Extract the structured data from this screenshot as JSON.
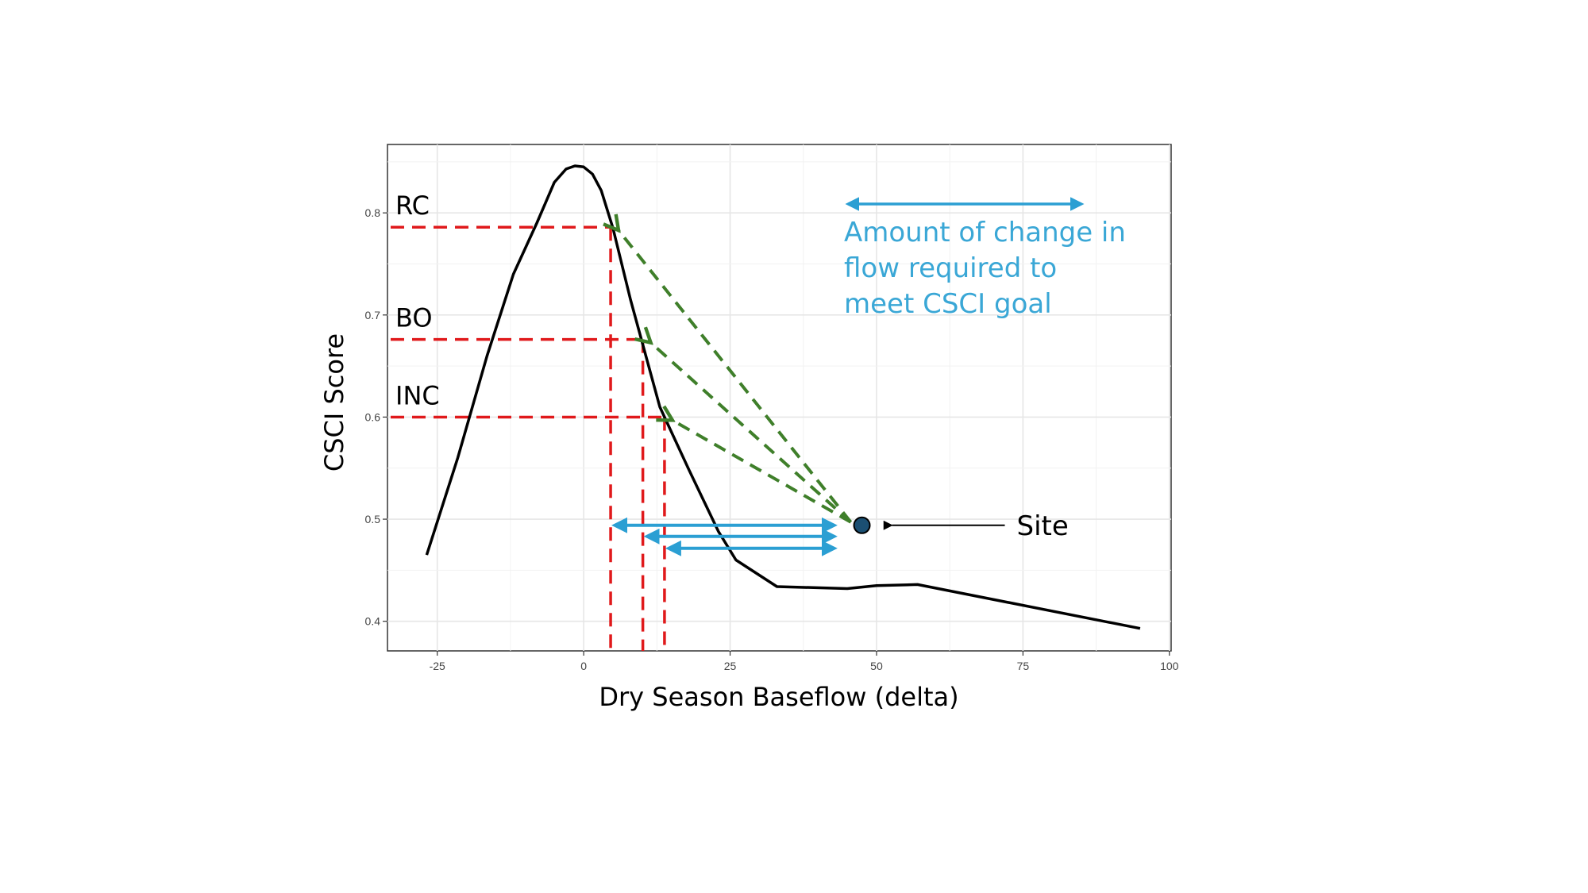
{
  "chart_data": {
    "type": "line",
    "xlabel": "Dry Season Baseflow (delta)",
    "ylabel": "CSCI Score",
    "xlim": [
      -33.5,
      100.3
    ],
    "ylim": [
      0.371,
      0.867
    ],
    "x_ticks": [
      -25,
      0,
      25,
      50,
      75,
      100
    ],
    "y_ticks": [
      0.4,
      0.5,
      0.6,
      0.7,
      0.8
    ],
    "x_tick_labels": [
      "-25",
      "0",
      "25",
      "50",
      "75",
      "100"
    ],
    "y_tick_labels": [
      "0.4",
      "0.5",
      "0.6",
      "0.7",
      "0.8"
    ],
    "grid": true,
    "series": [
      {
        "color": "#000000",
        "x": [
          -26.8,
          -21.5,
          -16.5,
          -12,
          -8,
          -5,
          -3,
          -1.5,
          0,
          1.5,
          3,
          5,
          8,
          13,
          18,
          23,
          26,
          33,
          45,
          50,
          57,
          95
        ],
        "y": [
          0.465,
          0.56,
          0.66,
          0.74,
          0.79,
          0.83,
          0.843,
          0.846,
          0.845,
          0.838,
          0.822,
          0.785,
          0.715,
          0.61,
          0.548,
          0.488,
          0.46,
          0.434,
          0.432,
          0.435,
          0.436,
          0.393
        ]
      }
    ],
    "goals": [
      {
        "label": "RC",
        "score": 0.786,
        "flow": 4.6
      },
      {
        "label": "BO",
        "score": 0.676,
        "flow": 10.1
      },
      {
        "label": "INC",
        "score": 0.6,
        "flow": 13.8
      }
    ],
    "site": {
      "label": "Site",
      "x": 47.5,
      "y": 0.494,
      "color": "#1b4f72"
    },
    "change_arrows_end_x": 42.8,
    "legend": {
      "text_lines": [
        "Amount of change in",
        "flow required to",
        "meet CSCI goal"
      ],
      "color": "#3aa7d6"
    },
    "colors": {
      "goal_lines": "#e0191b",
      "green_arrows": "#3f7f2a",
      "blue_arrows": "#2b9fd3",
      "curve": "#000000"
    }
  }
}
